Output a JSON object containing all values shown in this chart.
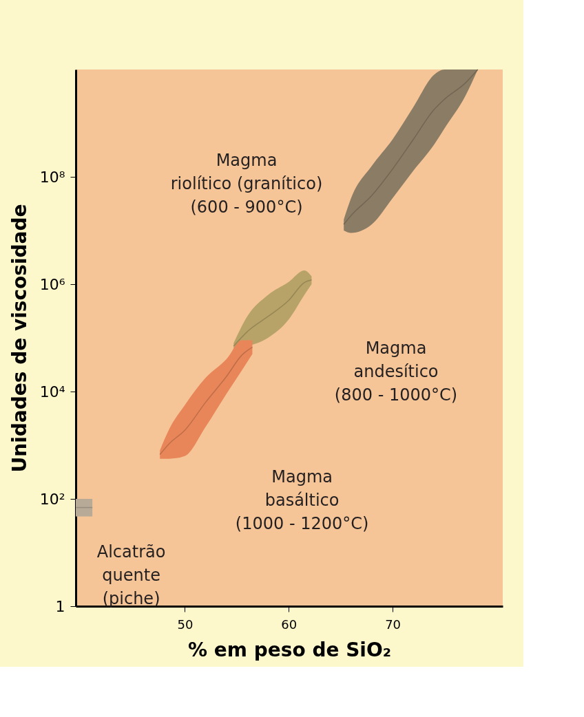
{
  "chart_data": {
    "type": "line",
    "xlabel": "% em peso de SiO₂",
    "ylabel": "Unidades de viscosidade",
    "log": "y",
    "grid": false,
    "xlim": [
      39.5,
      80.6
    ],
    "xticks": [
      50,
      60,
      70
    ],
    "ylim": [
      1,
      10000000000
    ],
    "yticks": [
      {
        "value": 1,
        "label": "1"
      },
      {
        "value": 100,
        "label": "10²"
      },
      {
        "value": 10000,
        "label": "10⁴"
      },
      {
        "value": 1000000,
        "label": "10⁶"
      },
      {
        "value": 100000000,
        "label": "10⁸"
      }
    ],
    "series": [
      {
        "color": "#726653",
        "x": [
          65.3,
          66,
          68,
          70,
          72,
          74,
          75,
          77,
          78.2
        ],
        "values": [
          13000000,
          19000000,
          45000000,
          140000000,
          500000000,
          1800000000,
          2800000000,
          5600000000,
          10000000000
        ],
        "upper": [
          16000000,
          40000000,
          160000000,
          500000000,
          2000000000,
          8000000000,
          10000000000,
          10000000000,
          10000000000
        ],
        "lower": [
          10000000,
          9000000,
          13000000,
          40000000,
          130000000,
          400000000,
          800000000,
          3200000000,
          10000000000
        ]
      },
      {
        "color": "#968655",
        "x": [
          54.7,
          56,
          58,
          60,
          61.5,
          62.2
        ],
        "values": [
          70000,
          130000,
          250000,
          500000,
          1070000,
          1200000
        ],
        "upper": [
          80000,
          250000,
          630000,
          1100000,
          1800000,
          1400000
        ],
        "lower": [
          63000,
          70000,
          100000,
          220000,
          630000,
          1000000
        ]
      },
      {
        "color": "#be6e49",
        "x": [
          47.6,
          48.5,
          50,
          52,
          54,
          55.5,
          56.5
        ],
        "values": [
          670,
          1070,
          1900,
          6300,
          19000,
          48000,
          67000
        ],
        "upper": [
          800,
          2000,
          5600,
          18000,
          40000,
          90000,
          90000
        ],
        "lower": [
          560,
          560,
          630,
          2200,
          9000,
          25000,
          50000
        ]
      },
      {
        "color": "#968c7c",
        "x": [
          39.5,
          41.1
        ],
        "values": [
          69,
          69
        ],
        "upper": [
          100,
          100
        ],
        "lower": [
          47,
          47
        ]
      }
    ],
    "annotations": [
      "Magma\nriolítico (granítico)\n(600 - 900°C)",
      "Magma\nandesítico\n(800 - 1000°C)",
      "Magma\nbasáltico\n(1000 - 1200°C)",
      "Alcatrão\nquente\n(piche)"
    ]
  }
}
